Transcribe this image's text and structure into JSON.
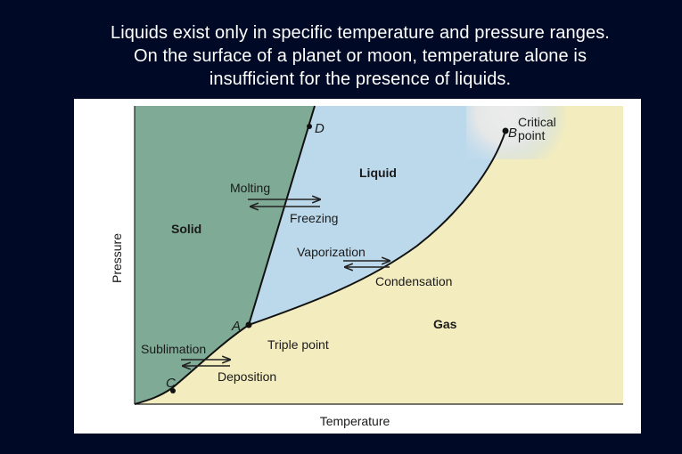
{
  "heading": {
    "line1": "Liquids exist only in specific temperature and pressure ranges.",
    "line2": "On the surface of a planet or moon, temperature alone is",
    "line3": "insufficient  for the presence of liquids."
  },
  "diagram": {
    "axes": {
      "x_label": "Temperature",
      "y_label": "Pressure"
    },
    "regions": {
      "solid": "Solid",
      "liquid": "Liquid",
      "gas": "Gas"
    },
    "points": {
      "a": "A",
      "b": "B",
      "c": "C",
      "d": "D",
      "critical_line1": "Critical",
      "critical_line2": "point",
      "triple": "Triple point"
    },
    "transitions": {
      "melting": "Molting",
      "freezing": "Freezing",
      "vaporization": "Vaporization",
      "condensation": "Condensation",
      "sublimation": "Sublimation",
      "deposition": "Deposition"
    },
    "colors": {
      "solid": "#7fab96",
      "liquid": "#bcd9ec",
      "gas": "#f3ecbe",
      "critical": "#e6e6e6"
    }
  }
}
